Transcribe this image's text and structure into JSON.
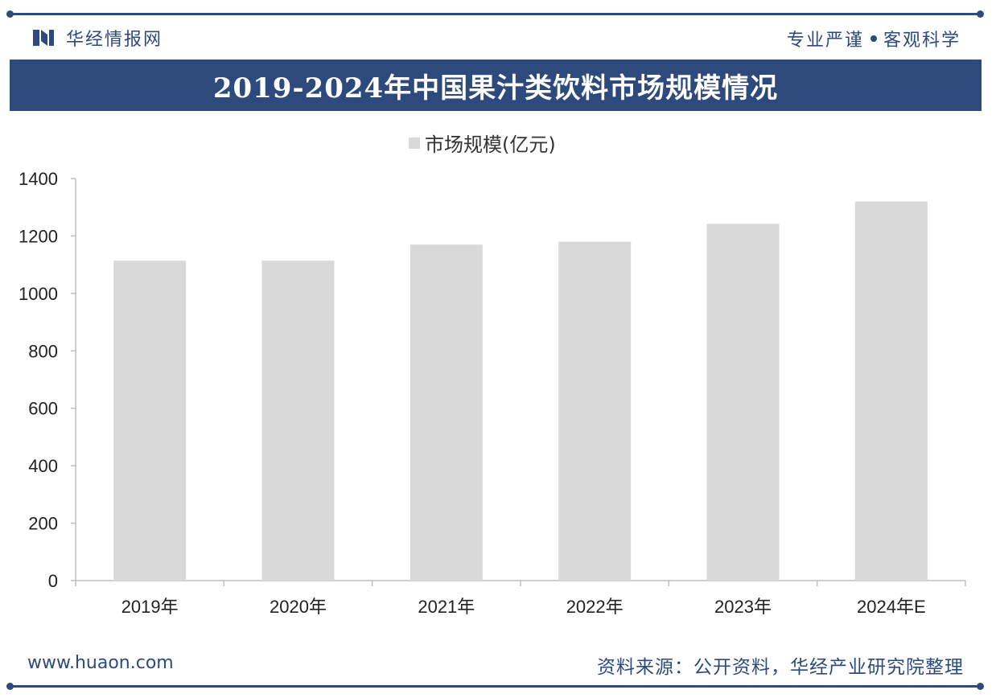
{
  "header": {
    "brand_name": "华经情报网",
    "slogan_left": "专业严谨",
    "slogan_right": "客观科学"
  },
  "title": "2019-2024年中国果汁类饮料市场规模情况",
  "footer": {
    "url": "www.huaon.com",
    "source": "资料来源：公开资料，华经产业研究院整理"
  },
  "colors": {
    "brand": "#2e4a7d",
    "bar": "#d9d9d9",
    "axis": "#bfbfbf"
  },
  "chart_data": {
    "type": "bar",
    "title": "2019-2024年中国果汁类饮料市场规模情况",
    "categories": [
      "2019年",
      "2020年",
      "2021年",
      "2022年",
      "2023年",
      "2024年E"
    ],
    "series": [
      {
        "name": "市场规模(亿元)",
        "values": [
          1114,
          1114,
          1170,
          1180,
          1242,
          1320
        ]
      }
    ],
    "ylim": [
      0,
      1400
    ],
    "yticks": [
      0,
      200,
      400,
      600,
      800,
      1000,
      1200,
      1400
    ],
    "xlabel": "",
    "ylabel": "",
    "grid": false,
    "legend": "top-center"
  }
}
